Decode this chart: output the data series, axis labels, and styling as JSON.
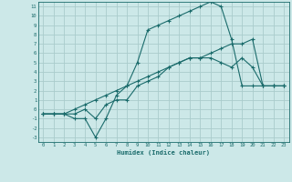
{
  "xlabel": "Humidex (Indice chaleur)",
  "bg_color": "#cce8e8",
  "grid_color": "#aacccc",
  "line_color": "#1a6b6b",
  "xlim": [
    -0.5,
    23.5
  ],
  "ylim": [
    -3.5,
    11.5
  ],
  "xticks": [
    0,
    1,
    2,
    3,
    4,
    5,
    6,
    7,
    8,
    9,
    10,
    11,
    12,
    13,
    14,
    15,
    16,
    17,
    18,
    19,
    20,
    21,
    22,
    23
  ],
  "yticks": [
    -3,
    -2,
    -1,
    0,
    1,
    2,
    3,
    4,
    5,
    6,
    7,
    8,
    9,
    10,
    11
  ],
  "line1_x": [
    0,
    1,
    2,
    3,
    4,
    5,
    6,
    7,
    8,
    9,
    10,
    11,
    12,
    13,
    14,
    15,
    16,
    17,
    18,
    19,
    20,
    21,
    22,
    23
  ],
  "line1_y": [
    -0.5,
    -0.5,
    -0.5,
    0.0,
    0.5,
    1.0,
    1.5,
    2.0,
    2.5,
    3.0,
    3.5,
    4.0,
    4.5,
    5.0,
    5.5,
    5.5,
    6.0,
    6.5,
    7.0,
    7.0,
    7.5,
    2.5,
    2.5,
    2.5
  ],
  "line2_x": [
    0,
    1,
    2,
    3,
    4,
    5,
    6,
    7,
    8,
    9,
    10,
    11,
    12,
    13,
    14,
    15,
    16,
    17,
    18,
    19,
    20,
    21,
    22,
    23
  ],
  "line2_y": [
    -0.5,
    -0.5,
    -0.5,
    -1.0,
    -1.0,
    -3.0,
    -1.0,
    1.5,
    2.5,
    5.0,
    8.5,
    9.0,
    9.5,
    10.0,
    10.5,
    11.0,
    11.5,
    11.0,
    7.5,
    2.5,
    2.5,
    2.5,
    2.5,
    2.5
  ],
  "line3_x": [
    0,
    1,
    2,
    3,
    4,
    5,
    6,
    7,
    8,
    9,
    10,
    11,
    12,
    13,
    14,
    15,
    16,
    17,
    18,
    19,
    20,
    21,
    22,
    23
  ],
  "line3_y": [
    -0.5,
    -0.5,
    -0.5,
    -0.5,
    0.0,
    -1.0,
    0.5,
    1.0,
    1.0,
    2.5,
    3.0,
    3.5,
    4.5,
    5.0,
    5.5,
    5.5,
    5.5,
    5.0,
    4.5,
    5.5,
    4.5,
    2.5,
    2.5,
    2.5
  ]
}
